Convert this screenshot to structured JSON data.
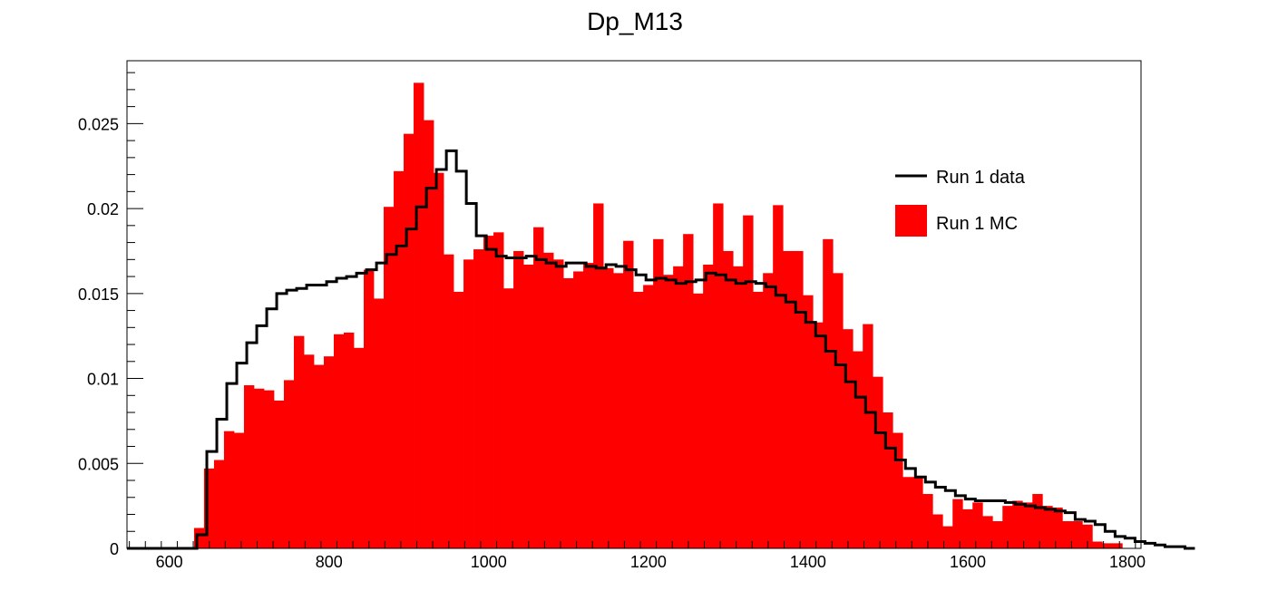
{
  "chart_data": {
    "type": "bar",
    "title": "Dp_M13",
    "xlabel": "",
    "ylabel": "",
    "xlim": [
      547,
      1817
    ],
    "ylim": [
      0,
      0.0287
    ],
    "x_ticks": [
      600,
      800,
      1000,
      1200,
      1400,
      1600,
      1800
    ],
    "x_tick_labels": [
      "600",
      "800",
      "1000",
      "1200",
      "1400",
      "1600",
      "1800"
    ],
    "y_ticks": [
      0,
      0.005,
      0.01,
      0.015,
      0.02,
      0.025
    ],
    "y_tick_labels": [
      "0",
      "0.005",
      "0.01",
      "0.015",
      "0.02",
      "0.025"
    ],
    "bin_width": 12.5,
    "grid": false,
    "legend_position": "top-right",
    "series": [
      {
        "name": "Run 1 data",
        "style": "step",
        "color": "#000000",
        "bin_start": 547,
        "values": [
          0,
          0,
          0,
          0,
          0,
          0,
          0,
          0.0008,
          0.0057,
          0.0076,
          0.0097,
          0.0109,
          0.0121,
          0.0131,
          0.0141,
          0.015,
          0.0152,
          0.0153,
          0.0155,
          0.0155,
          0.0157,
          0.0159,
          0.016,
          0.0162,
          0.0164,
          0.0168,
          0.0173,
          0.0178,
          0.0188,
          0.0201,
          0.0212,
          0.0223,
          0.0234,
          0.0222,
          0.0203,
          0.0184,
          0.0176,
          0.0172,
          0.0171,
          0.0171,
          0.0172,
          0.017,
          0.0168,
          0.0166,
          0.0168,
          0.0168,
          0.0166,
          0.0165,
          0.0167,
          0.0166,
          0.0164,
          0.0161,
          0.0158,
          0.0159,
          0.0158,
          0.0156,
          0.0157,
          0.0158,
          0.0162,
          0.0161,
          0.0158,
          0.0156,
          0.0157,
          0.0156,
          0.0154,
          0.0149,
          0.0145,
          0.0139,
          0.0133,
          0.0125,
          0.0116,
          0.0108,
          0.0098,
          0.0089,
          0.008,
          0.0068,
          0.0059,
          0.0052,
          0.0047,
          0.0042,
          0.0039,
          0.0036,
          0.0034,
          0.0031,
          0.0029,
          0.0028,
          0.0028,
          0.0028,
          0.0027,
          0.0026,
          0.0025,
          0.0024,
          0.0023,
          0.0022,
          0.0021,
          0.0017,
          0.0016,
          0.0014,
          0.001,
          0.0007,
          0.0006,
          0.0004,
          0.0003,
          0.0002,
          0.0001,
          0.0001,
          0
        ]
      },
      {
        "name": "Run 1 MC",
        "style": "filled",
        "color": "#ff0000",
        "bin_start": 631,
        "values": [
          0.0012,
          0.0047,
          0.0052,
          0.0069,
          0.0068,
          0.0096,
          0.0094,
          0.0093,
          0.0087,
          0.0099,
          0.0125,
          0.0114,
          0.0108,
          0.0113,
          0.0126,
          0.0127,
          0.0118,
          0.0164,
          0.0147,
          0.0201,
          0.0222,
          0.0244,
          0.0274,
          0.0252,
          0.0221,
          0.0173,
          0.0151,
          0.017,
          0.0176,
          0.0184,
          0.0186,
          0.0153,
          0.0175,
          0.0167,
          0.0189,
          0.0174,
          0.017,
          0.0159,
          0.0163,
          0.0168,
          0.0203,
          0.0165,
          0.0162,
          0.0181,
          0.0151,
          0.0155,
          0.0182,
          0.0161,
          0.0166,
          0.0185,
          0.015,
          0.0167,
          0.0203,
          0.0175,
          0.0166,
          0.0196,
          0.0151,
          0.0162,
          0.0202,
          0.0175,
          0.0175,
          0.0149,
          0.0133,
          0.0182,
          0.0162,
          0.0129,
          0.0116,
          0.0132,
          0.0101,
          0.008,
          0.0068,
          0.0042,
          0.0042,
          0.0032,
          0.002,
          0.0013,
          0.0029,
          0.0023,
          0.0027,
          0.0019,
          0.0016,
          0.0025,
          0.0028,
          0.0027,
          0.0032,
          0.0025,
          0.0024,
          0.0016,
          0.0016,
          0.0014,
          0.0004,
          0.0003,
          0.0003
        ]
      }
    ]
  }
}
